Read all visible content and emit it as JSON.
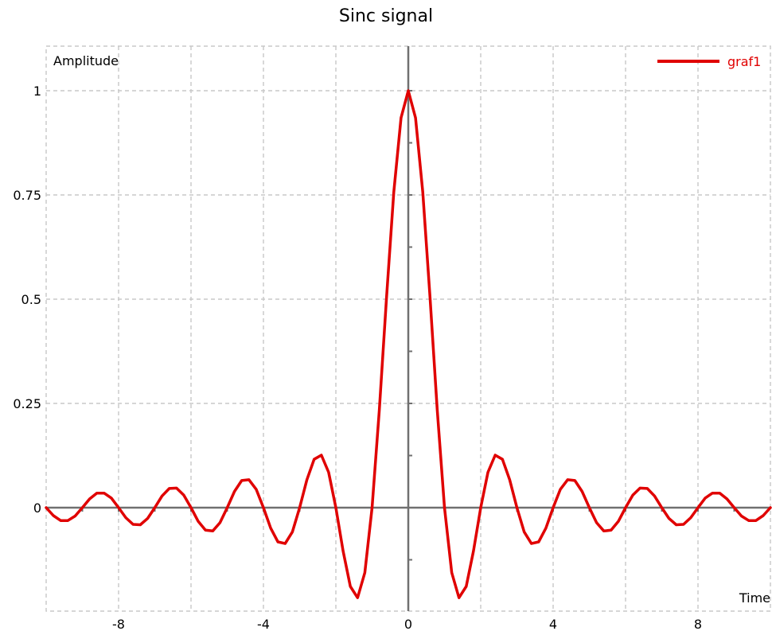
{
  "chart_data": {
    "type": "line",
    "title": "Sinc signal",
    "xlabel": "Time",
    "ylabel": "Amplitude",
    "xlim": [
      -10,
      10
    ],
    "ylim": [
      -0.25,
      1.1
    ],
    "grid": true,
    "legend_position": "top-right",
    "x_ticks": [
      {
        "value": -8,
        "label": "-8"
      },
      {
        "value": -4,
        "label": "-4"
      },
      {
        "value": 0,
        "label": "0"
      },
      {
        "value": 4,
        "label": "4"
      },
      {
        "value": 8,
        "label": "8"
      }
    ],
    "y_ticks": [
      {
        "value": 0,
        "label": "0"
      },
      {
        "value": 0.25,
        "label": "0.25"
      },
      {
        "value": 0.5,
        "label": "0.5"
      },
      {
        "value": 0.75,
        "label": "0.75"
      },
      {
        "value": 1,
        "label": "1"
      }
    ],
    "series": [
      {
        "name": "graf1",
        "color": "#e00000",
        "x": [
          -10.0,
          -9.8,
          -9.6,
          -9.4,
          -9.2,
          -9.0,
          -8.8,
          -8.6,
          -8.4,
          -8.2,
          -8.0,
          -7.8,
          -7.6,
          -7.4,
          -7.2,
          -7.0,
          -6.8,
          -6.6,
          -6.4,
          -6.2,
          -6.0,
          -5.8,
          -5.6,
          -5.4,
          -5.2,
          -5.0,
          -4.8,
          -4.6,
          -4.4,
          -4.2,
          -4.0,
          -3.8,
          -3.6,
          -3.4,
          -3.2,
          -3.0,
          -2.8,
          -2.6,
          -2.4,
          -2.2,
          -2.0,
          -1.8,
          -1.6,
          -1.4,
          -1.2,
          -1.0,
          -0.8,
          -0.6,
          -0.4,
          -0.2,
          0.0,
          0.2,
          0.4,
          0.6,
          0.8,
          1.0,
          1.2,
          1.4,
          1.6,
          1.8,
          2.0,
          2.2,
          2.4,
          2.6,
          2.8,
          3.0,
          3.2,
          3.4,
          3.6,
          3.8,
          4.0,
          4.2,
          4.4,
          4.6,
          4.8,
          5.0,
          5.2,
          5.4,
          5.6,
          5.8,
          6.0,
          6.2,
          6.4,
          6.6,
          6.8,
          7.0,
          7.2,
          7.4,
          7.6,
          7.8,
          8.0,
          8.2,
          8.4,
          8.6,
          8.8,
          9.0,
          9.2,
          9.4,
          9.6,
          9.8,
          10.0
        ],
        "y": [
          0.0,
          -0.019,
          -0.031,
          -0.031,
          -0.02,
          0.0,
          0.021,
          0.035,
          0.035,
          0.023,
          0.0,
          -0.024,
          -0.04,
          -0.041,
          -0.026,
          0.0,
          0.028,
          0.046,
          0.047,
          0.03,
          0.0,
          -0.033,
          -0.054,
          -0.056,
          -0.036,
          0.0,
          0.039,
          0.065,
          0.067,
          0.044,
          0.0,
          -0.049,
          -0.082,
          -0.086,
          -0.058,
          0.0,
          0.067,
          0.116,
          0.126,
          0.085,
          0.0,
          -0.104,
          -0.189,
          -0.216,
          -0.156,
          0.0,
          0.234,
          0.505,
          0.757,
          0.935,
          1.0,
          0.935,
          0.757,
          0.505,
          0.234,
          0.0,
          -0.156,
          -0.216,
          -0.189,
          -0.104,
          0.0,
          0.085,
          0.126,
          0.116,
          0.067,
          0.0,
          -0.058,
          -0.086,
          -0.082,
          -0.049,
          0.0,
          0.044,
          0.067,
          0.065,
          0.039,
          0.0,
          -0.036,
          -0.056,
          -0.054,
          -0.033,
          0.0,
          0.03,
          0.047,
          0.046,
          0.028,
          0.0,
          -0.026,
          -0.041,
          -0.04,
          -0.024,
          0.0,
          0.023,
          0.035,
          0.035,
          0.021,
          0.0,
          -0.02,
          -0.031,
          -0.031,
          -0.019,
          0.0
        ]
      }
    ]
  }
}
